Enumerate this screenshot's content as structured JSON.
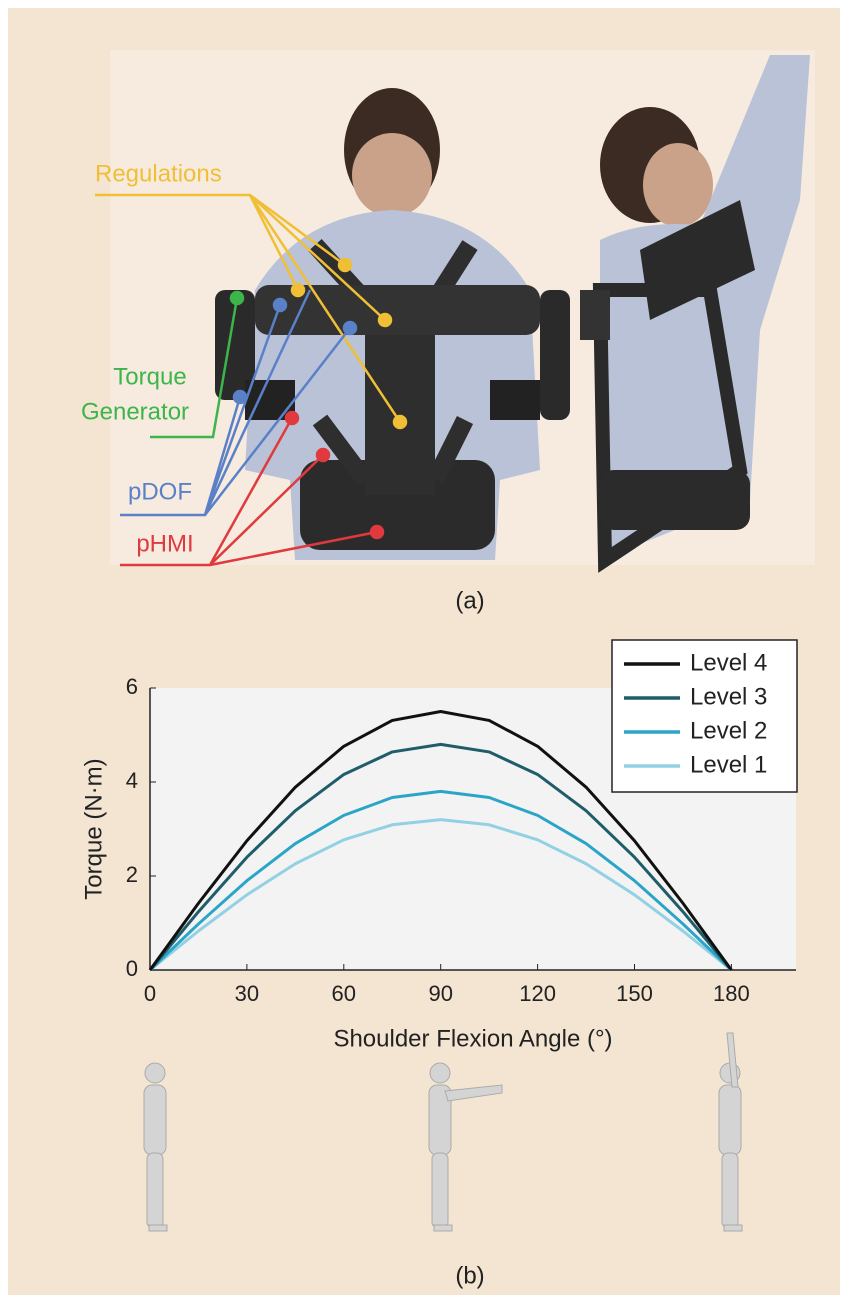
{
  "panel_a": {
    "labels": {
      "regulations": "Regulations",
      "torque_generator": [
        "Torque",
        "Generator"
      ],
      "pdof": "pDOF",
      "phmi": "pHMI"
    },
    "caption": "(a)"
  },
  "panel_b_caption": "(b)",
  "chart_data": {
    "type": "line",
    "xlabel": "Shoulder Flexion Angle (°)",
    "ylabel": "Torque (N·m)",
    "x": [
      0,
      15,
      30,
      45,
      60,
      75,
      90,
      105,
      120,
      135,
      150,
      165,
      180
    ],
    "series": [
      {
        "name": "Level 4",
        "color": "#111111",
        "values": [
          0,
          1.42,
          2.75,
          3.89,
          4.76,
          5.31,
          5.5,
          5.31,
          4.76,
          3.89,
          2.75,
          1.42,
          0
        ]
      },
      {
        "name": "Level 3",
        "color": "#1f5d6b",
        "values": [
          0,
          1.24,
          2.4,
          3.39,
          4.16,
          4.64,
          4.8,
          4.64,
          4.16,
          3.39,
          2.4,
          1.24,
          0
        ]
      },
      {
        "name": "Level 2",
        "color": "#2aa5c8",
        "values": [
          0,
          0.98,
          1.9,
          2.69,
          3.29,
          3.67,
          3.8,
          3.67,
          3.29,
          2.69,
          1.9,
          0.98,
          0
        ]
      },
      {
        "name": "Level 1",
        "color": "#92d1e4",
        "values": [
          0,
          0.83,
          1.6,
          2.26,
          2.77,
          3.09,
          3.2,
          3.09,
          2.77,
          2.26,
          1.6,
          0.83,
          0
        ]
      }
    ],
    "xlim": [
      0,
      200
    ],
    "xticks": [
      0,
      30,
      60,
      90,
      120,
      150,
      180
    ],
    "ylim": [
      0,
      6
    ],
    "yticks": [
      0,
      2,
      4,
      6
    ],
    "grid": false,
    "legend": "upper right",
    "plot_background": "#f3f3f3"
  }
}
